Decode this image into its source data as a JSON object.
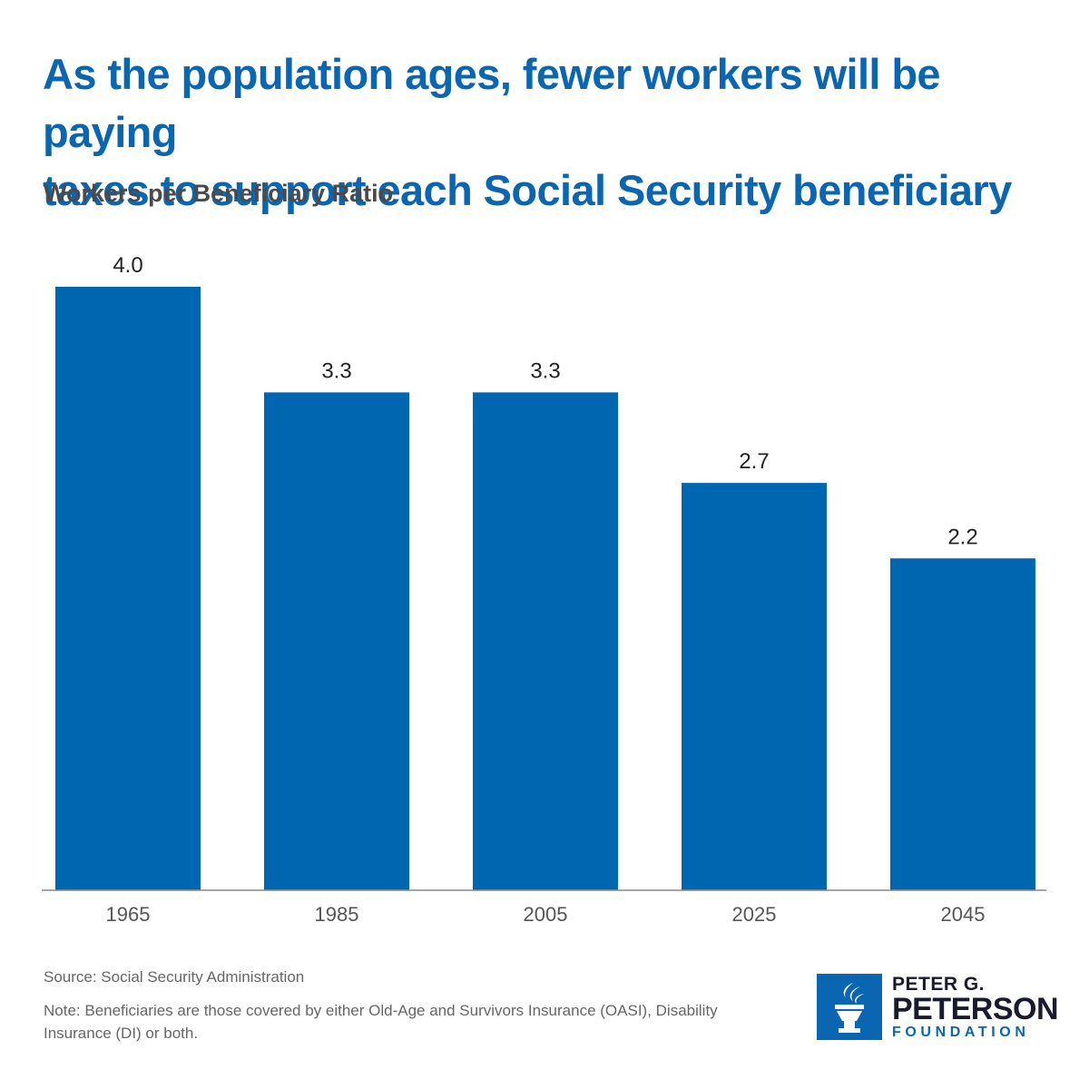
{
  "title": {
    "line1": "As the population ages, fewer workers will be paying",
    "line2": "taxes to support each Social Security beneficiary"
  },
  "subtitle": "Workers per Beneficiary Ratio",
  "colors": {
    "title": "#0a66b0",
    "bar": "#0066b0",
    "text": "#4a4a4a"
  },
  "chart_data": {
    "type": "bar",
    "title": "As the population ages, fewer workers will be paying taxes to support each Social Security beneficiary",
    "ylabel": "Workers per Beneficiary Ratio",
    "xlabel": "",
    "categories": [
      "1965",
      "1985",
      "2005",
      "2025",
      "2045"
    ],
    "values": [
      4.0,
      3.3,
      3.3,
      2.7,
      2.2
    ],
    "value_labels": [
      "4.0",
      "3.3",
      "3.3",
      "2.7",
      "2.2"
    ],
    "ylim": [
      0,
      4.0
    ],
    "grid": false
  },
  "footer": {
    "source": "Source: Social Security Administration",
    "note": "Note: Beneficiaries are those covered by either Old-Age and Survivors Insurance (OASI), Disability Insurance (DI) or both."
  },
  "logo": {
    "line1": "PETER G.",
    "line2": "PETERSON",
    "line3": "FOUNDATION",
    "icon": "torch-icon"
  }
}
